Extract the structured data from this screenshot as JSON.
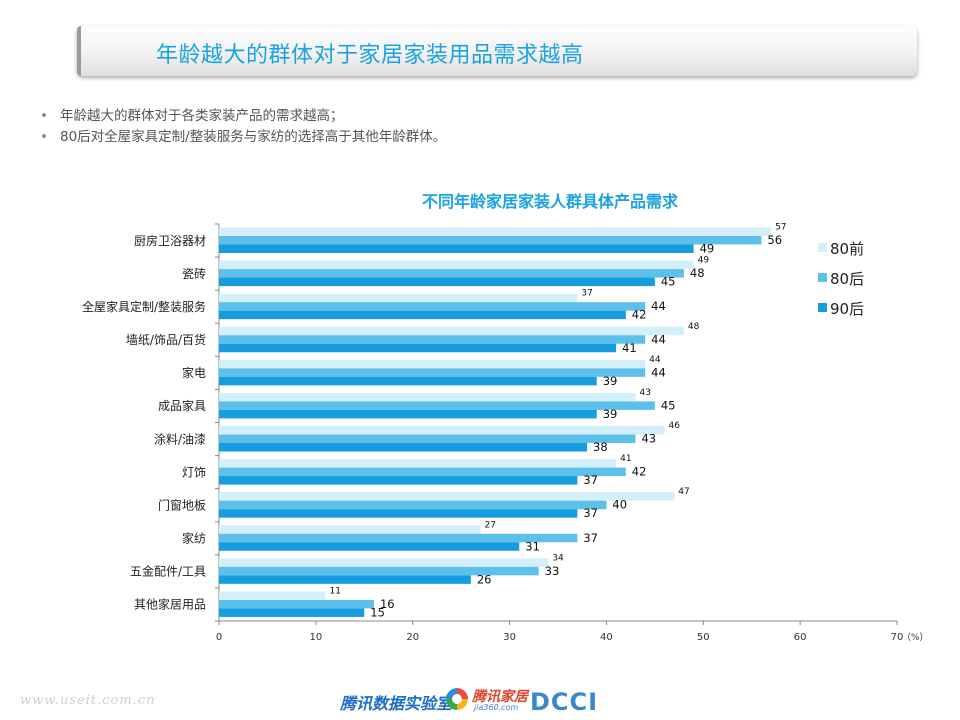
{
  "title": "年龄越大的群体对于家居家装用品需求越高",
  "bullets": [
    "年龄越大的群体对于各类家装产品的需求越高；",
    "80后对全屋家具定制/整装服务与家纺的选择高于其他年龄群体。"
  ],
  "footer": {
    "watermark": "www.useit.com.cn",
    "brand1": "腾讯数据实验室",
    "brand2": "腾讯家居",
    "brand2_sub": "jia360.com",
    "brand3": "DCCI"
  },
  "chart_data": {
    "type": "bar",
    "orientation": "horizontal",
    "title": "不同年龄家居家装人群具体产品需求",
    "unit_label": "（%）",
    "categories": [
      "厨房卫浴器材",
      "瓷砖",
      "全屋家具定制/整装服务",
      "墙纸/饰品/百货",
      "家电",
      "成品家具",
      "涂料/油漆",
      "灯饰",
      "门窗地板",
      "家纺",
      "五金配件/工具",
      "其他家居用品"
    ],
    "series": [
      {
        "name": "80前",
        "color": "#d3effa",
        "values": [
          57,
          49,
          37,
          48,
          44,
          43,
          46,
          41,
          47,
          27,
          34,
          11
        ]
      },
      {
        "name": "80后",
        "color": "#5cc0ea",
        "values": [
          56,
          48,
          44,
          44,
          44,
          45,
          43,
          42,
          40,
          37,
          33,
          16
        ]
      },
      {
        "name": "90后",
        "color": "#169ddf",
        "values": [
          49,
          45,
          42,
          41,
          39,
          39,
          38,
          37,
          37,
          31,
          26,
          15
        ]
      }
    ],
    "xlim": [
      0,
      70
    ],
    "xticks": [
      0,
      10,
      20,
      30,
      40,
      50,
      60,
      70
    ],
    "legend_position": "right",
    "grid": false
  }
}
